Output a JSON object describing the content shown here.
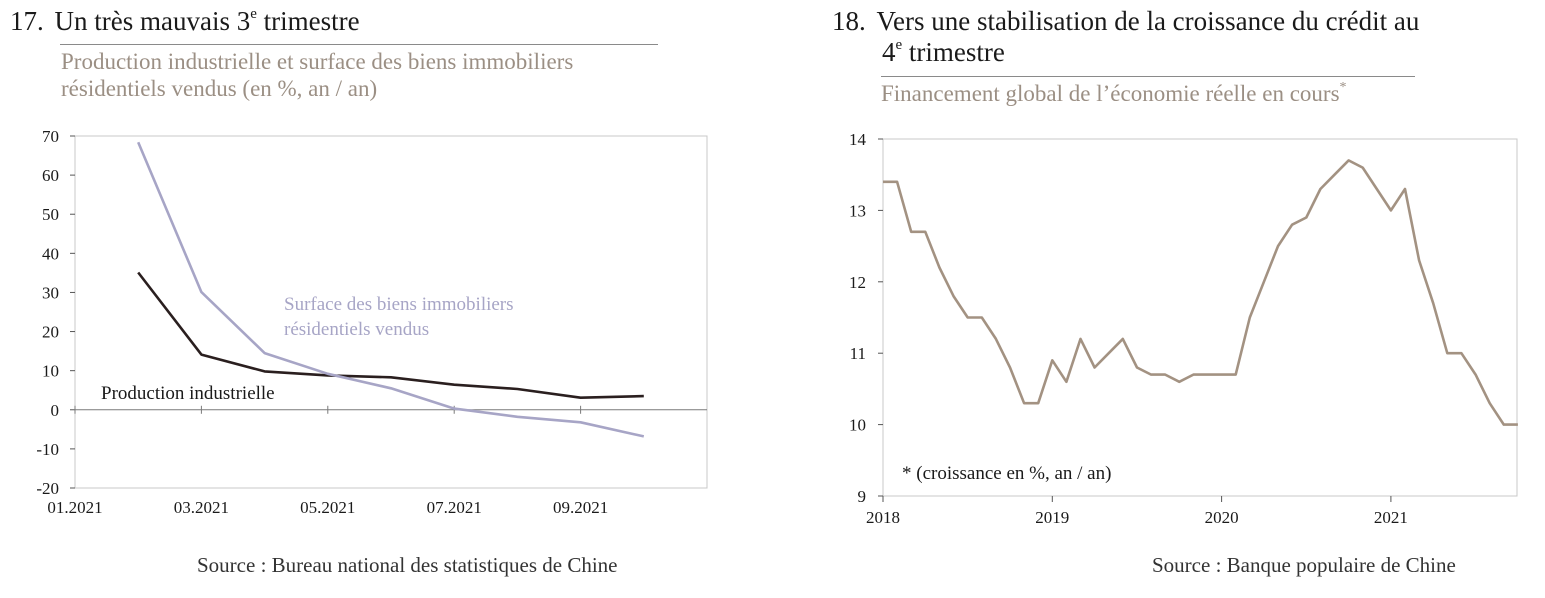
{
  "left": {
    "number": "17.",
    "title_main": "Un très mauvais 3",
    "title_sup": "e",
    "title_end": " trimestre",
    "subtitle_line1": "Production industrielle et surface des biens immobiliers",
    "subtitle_line2": "résidentiels vendus (en %, an / an)",
    "source": "Source : Bureau national des statistiques de Chine",
    "colors": {
      "series1": "#2a1f1f",
      "series2": "#a7a5c6"
    }
  },
  "right": {
    "number": "18.",
    "title_line1": "Vers une stabilisation de la croissance du crédit au",
    "title_line2_sup": "e",
    "title_line2_pre": "4",
    "title_line2_end": " trimestre",
    "subtitle": "Financement global de l’économie réelle en cours",
    "subtitle_sup": "*",
    "footnote": "* (croissance en %, an / an)",
    "source": "Source : Banque populaire de Chine",
    "colors": {
      "series1": "#a39282"
    }
  },
  "chart_data": [
    {
      "type": "line",
      "x_tick_labels": [
        "01.2021",
        "03.2021",
        "05.2021",
        "07.2021",
        "09.2021"
      ],
      "ylim": [
        -20,
        70
      ],
      "y_ticks": [
        -20,
        -10,
        0,
        10,
        20,
        30,
        40,
        50,
        60,
        70
      ],
      "x_months": [
        2,
        3,
        4,
        5,
        6,
        7,
        8,
        9,
        10
      ],
      "series": [
        {
          "name": "Production industrielle",
          "values": [
            35.1,
            14.1,
            9.8,
            8.8,
            8.3,
            6.4,
            5.3,
            3.1,
            3.5
          ]
        },
        {
          "name": "Surface des biens immobiliers résidentiels vendus",
          "name_line1": "Surface des biens immobiliers",
          "name_line2": "résidentiels vendus",
          "values": [
            68.4,
            30.1,
            14.5,
            9.2,
            5.5,
            0.3,
            -1.8,
            -3.2,
            -6.8
          ]
        }
      ]
    },
    {
      "type": "line",
      "x_tick_labels": [
        "2018",
        "2019",
        "2020",
        "2021"
      ],
      "ylim": [
        9,
        14
      ],
      "y_ticks": [
        9,
        10,
        11,
        12,
        13,
        14
      ],
      "values": [
        13.4,
        13.4,
        12.7,
        12.7,
        12.2,
        11.8,
        11.5,
        11.5,
        11.2,
        10.8,
        10.3,
        10.3,
        10.9,
        10.6,
        11.2,
        10.8,
        11.0,
        11.2,
        10.8,
        10.7,
        10.7,
        10.6,
        10.7,
        10.7,
        10.7,
        10.7,
        11.5,
        12.0,
        12.5,
        12.8,
        12.9,
        13.3,
        13.5,
        13.7,
        13.6,
        13.3,
        13.0,
        13.3,
        12.3,
        11.7,
        11.0,
        11.0,
        10.7,
        10.3,
        10.0,
        10.0
      ]
    }
  ]
}
